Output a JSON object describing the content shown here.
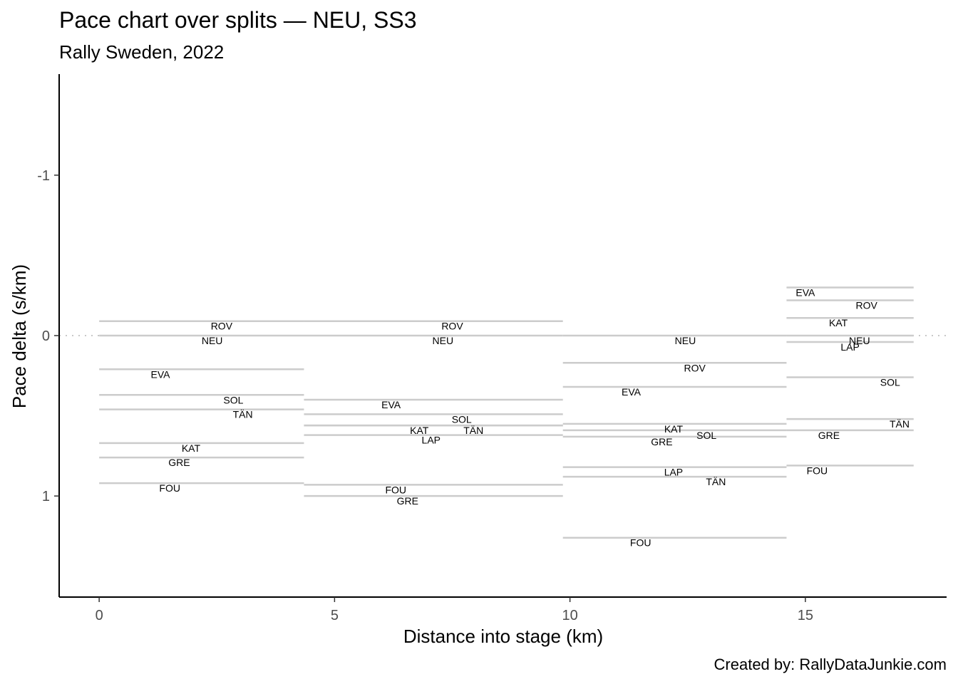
{
  "chart_data": {
    "type": "line",
    "title": "Pace chart over splits — NEU, SS3",
    "subtitle": "Rally Sweden, 2022",
    "caption": "Created by: RallyDataJunkie.com",
    "xlabel": "Distance into stage (km)",
    "ylabel": "Pace delta (s/km)",
    "xlim": [
      -0.85,
      18
    ],
    "ylim": [
      1.63,
      -1.63
    ],
    "y_reversed": true,
    "x_ticks": [
      0,
      5,
      10,
      15
    ],
    "y_ticks": [
      -1,
      0,
      1
    ],
    "x_tick_labels": [
      "0",
      "5",
      "10",
      "15"
    ],
    "y_tick_labels": [
      "-1",
      "0",
      "1"
    ],
    "reference_line": 0,
    "grid": false,
    "line_color": "#cccccc",
    "reference_color": "#c8c8c8",
    "splits": [
      {
        "start": 0,
        "end": 4.35,
        "drivers": [
          {
            "name": "ROV",
            "value": -0.09,
            "label_x": 2.6
          },
          {
            "name": "NEU",
            "value": 0.0,
            "label_x": 2.4
          },
          {
            "name": "EVA",
            "value": 0.21,
            "label_x": 1.3
          },
          {
            "name": "SOL",
            "value": 0.37,
            "label_x": 2.85
          },
          {
            "name": "TÄN",
            "value": 0.46,
            "label_x": 3.05
          },
          {
            "name": "KAT",
            "value": 0.67,
            "label_x": 1.95
          },
          {
            "name": "GRE",
            "value": 0.76,
            "label_x": 1.7
          },
          {
            "name": "FOU",
            "value": 0.92,
            "label_x": 1.5
          }
        ]
      },
      {
        "start": 4.35,
        "end": 9.85,
        "drivers": [
          {
            "name": "ROV",
            "value": -0.09,
            "label_x": 7.5
          },
          {
            "name": "NEU",
            "value": 0.0,
            "label_x": 7.3
          },
          {
            "name": "EVA",
            "value": 0.4,
            "label_x": 6.2
          },
          {
            "name": "SOL",
            "value": 0.49,
            "label_x": 7.7
          },
          {
            "name": "TÄN",
            "value": 0.56,
            "label_x": 7.95
          },
          {
            "name": "KAT",
            "value": 0.56,
            "label_x": 6.8
          },
          {
            "name": "LAP",
            "value": 0.62,
            "label_x": 7.05
          },
          {
            "name": "FOU",
            "value": 0.93,
            "label_x": 6.3
          },
          {
            "name": "GRE",
            "value": 1.0,
            "label_x": 6.55
          }
        ]
      },
      {
        "start": 9.85,
        "end": 14.6,
        "drivers": [
          {
            "name": "NEU",
            "value": 0.0,
            "label_x": 12.45
          },
          {
            "name": "ROV",
            "value": 0.17,
            "label_x": 12.65
          },
          {
            "name": "EVA",
            "value": 0.32,
            "label_x": 11.3
          },
          {
            "name": "KAT",
            "value": 0.55,
            "label_x": 12.2
          },
          {
            "name": "SOL",
            "value": 0.59,
            "label_x": 12.9
          },
          {
            "name": "GRE",
            "value": 0.63,
            "label_x": 11.95
          },
          {
            "name": "LAP",
            "value": 0.82,
            "label_x": 12.2
          },
          {
            "name": "TÄN",
            "value": 0.88,
            "label_x": 13.1
          },
          {
            "name": "FOU",
            "value": 1.26,
            "label_x": 11.5
          }
        ]
      },
      {
        "start": 14.6,
        "end": 17.3,
        "drivers": [
          {
            "name": "EVA",
            "value": -0.3,
            "label_x": 15.0
          },
          {
            "name": "ROV",
            "value": -0.22,
            "label_x": 16.3
          },
          {
            "name": "KAT",
            "value": -0.11,
            "label_x": 15.7
          },
          {
            "name": "NEU",
            "value": 0.0,
            "label_x": 16.15
          },
          {
            "name": "LAP",
            "value": 0.04,
            "label_x": 15.95
          },
          {
            "name": "SOL",
            "value": 0.26,
            "label_x": 16.8
          },
          {
            "name": "TÄN",
            "value": 0.52,
            "label_x": 17.0
          },
          {
            "name": "GRE",
            "value": 0.59,
            "label_x": 15.5
          },
          {
            "name": "FOU",
            "value": 0.81,
            "label_x": 15.25
          }
        ]
      }
    ]
  }
}
